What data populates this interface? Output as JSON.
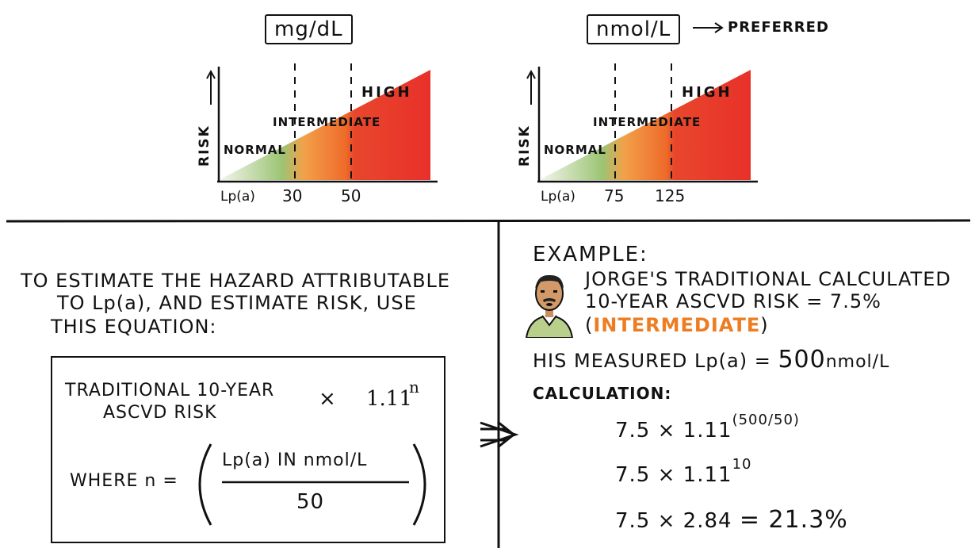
{
  "charts": [
    {
      "unit": "mg/dL",
      "y_label": "RISK",
      "x_label": "Lp(a)",
      "zones": [
        "NORMAL",
        "INTERMEDIATE",
        "HIGH"
      ],
      "thresholds": [
        "30",
        "50"
      ]
    },
    {
      "unit": "nmol/L",
      "unit_note": "PREFERRED",
      "y_label": "RISK",
      "x_label": "Lp(a)",
      "zones": [
        "NORMAL",
        "INTERMEDIATE",
        "HIGH"
      ],
      "thresholds": [
        "75",
        "125"
      ]
    }
  ],
  "colors": {
    "normal": "#9cc474",
    "intermediate": "#f08a2a",
    "high": "#e8322c",
    "accent": "#ee7d22"
  },
  "left_panel": {
    "intro_lines": [
      "TO ESTIMATE THE HAZARD ATTRIBUTABLE",
      "TO Lp(a), AND ESTIMATE RISK, USE",
      "THIS EQUATION:"
    ],
    "formula_term_line1": "TRADITIONAL 10-YEAR",
    "formula_term_line2": "ASCVD RISK",
    "times": "×",
    "base": "1.11",
    "exponent": "n",
    "where": "WHERE n =",
    "numerator": "Lp(a) IN nmol/L",
    "denominator": "50"
  },
  "right_panel": {
    "heading": "EXAMPLE:",
    "line1": "JORGE'S TRADITIONAL CALCULATED",
    "line2": "10-YEAR ASCVD RISK = 7.5%",
    "paren_open": "(",
    "category": "INTERMEDIATE",
    "paren_close": ")",
    "measured_label": "HIS MEASURED Lp(a) =",
    "measured_value": "500",
    "measured_unit": "nmol/L",
    "calc_label": "CALCULATION:",
    "steps": [
      {
        "lhs": "7.5 × 1.11",
        "exp": "(500/50)",
        "rhs": ""
      },
      {
        "lhs": "7.5 × 1.11",
        "exp": "10",
        "rhs": ""
      },
      {
        "lhs": "7.5 × 2.84",
        "exp": "",
        "rhs": "= 21.3%"
      }
    ]
  }
}
